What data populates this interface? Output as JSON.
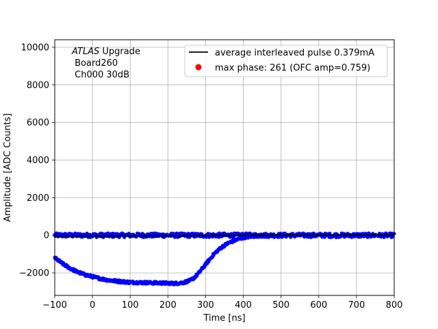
{
  "chart_data": {
    "type": "scatter",
    "title": "",
    "xlabel": "Time [ns]",
    "ylabel": "Amplitude [ADC Counts]",
    "xlim": [
      -100,
      800
    ],
    "ylim": [
      -3200,
      10400
    ],
    "x_ticks": [
      -100,
      0,
      100,
      200,
      300,
      400,
      500,
      600,
      700,
      800
    ],
    "y_ticks": [
      -2000,
      0,
      2000,
      4000,
      6000,
      8000,
      10000
    ],
    "x_tick_labels": [
      "−100",
      "0",
      "100",
      "200",
      "300",
      "400",
      "500",
      "600",
      "700",
      "800"
    ],
    "y_tick_labels": [
      "−2000",
      "0",
      "2000",
      "4000",
      "6000",
      "8000",
      "10000"
    ],
    "grid": true,
    "legend_position": "top-right",
    "annotation": {
      "italic": "ATLAS",
      "line1_rest": " Upgrade",
      "line2": " Board260",
      "line3": " Ch000 30dB"
    },
    "series": [
      {
        "name": "average interleaved pulse 0.379mA",
        "kind": "line",
        "color": "#000000",
        "points": [
          [
            -100,
            -60
          ],
          [
            0,
            -50
          ],
          [
            100,
            -40
          ],
          [
            200,
            -30
          ],
          [
            300,
            -20
          ],
          [
            400,
            -10
          ],
          [
            500,
            0
          ],
          [
            600,
            0
          ],
          [
            700,
            5
          ],
          [
            800,
            10
          ]
        ]
      },
      {
        "name": "max phase: 261 (OFC amp=0.759)",
        "kind": "marker",
        "color": "#ff0000",
        "points": []
      },
      {
        "name": "",
        "kind": "scatter",
        "color": "#0000ff",
        "baseline_points": [
          [
            -100,
            0
          ],
          [
            0,
            0
          ],
          [
            100,
            0
          ],
          [
            200,
            0
          ],
          [
            300,
            0
          ],
          [
            400,
            0
          ],
          [
            500,
            0
          ],
          [
            600,
            0
          ],
          [
            700,
            0
          ],
          [
            800,
            0
          ]
        ],
        "pulse_points": [
          [
            -100,
            -1200
          ],
          [
            -80,
            -1500
          ],
          [
            -60,
            -1750
          ],
          [
            -40,
            -1950
          ],
          [
            -20,
            -2100
          ],
          [
            0,
            -2200
          ],
          [
            20,
            -2300
          ],
          [
            40,
            -2380
          ],
          [
            60,
            -2430
          ],
          [
            80,
            -2470
          ],
          [
            100,
            -2500
          ],
          [
            120,
            -2510
          ],
          [
            140,
            -2520
          ],
          [
            160,
            -2530
          ],
          [
            180,
            -2540
          ],
          [
            200,
            -2550
          ],
          [
            220,
            -2560
          ],
          [
            240,
            -2520
          ],
          [
            260,
            -2400
          ],
          [
            270,
            -2250
          ],
          [
            280,
            -2050
          ],
          [
            290,
            -1800
          ],
          [
            300,
            -1550
          ],
          [
            310,
            -1300
          ],
          [
            320,
            -1050
          ],
          [
            330,
            -850
          ],
          [
            340,
            -680
          ],
          [
            350,
            -530
          ],
          [
            360,
            -420
          ],
          [
            370,
            -330
          ],
          [
            380,
            -250
          ],
          [
            390,
            -180
          ],
          [
            400,
            -120
          ],
          [
            420,
            -60
          ],
          [
            440,
            -20
          ],
          [
            460,
            0
          ]
        ]
      }
    ]
  }
}
